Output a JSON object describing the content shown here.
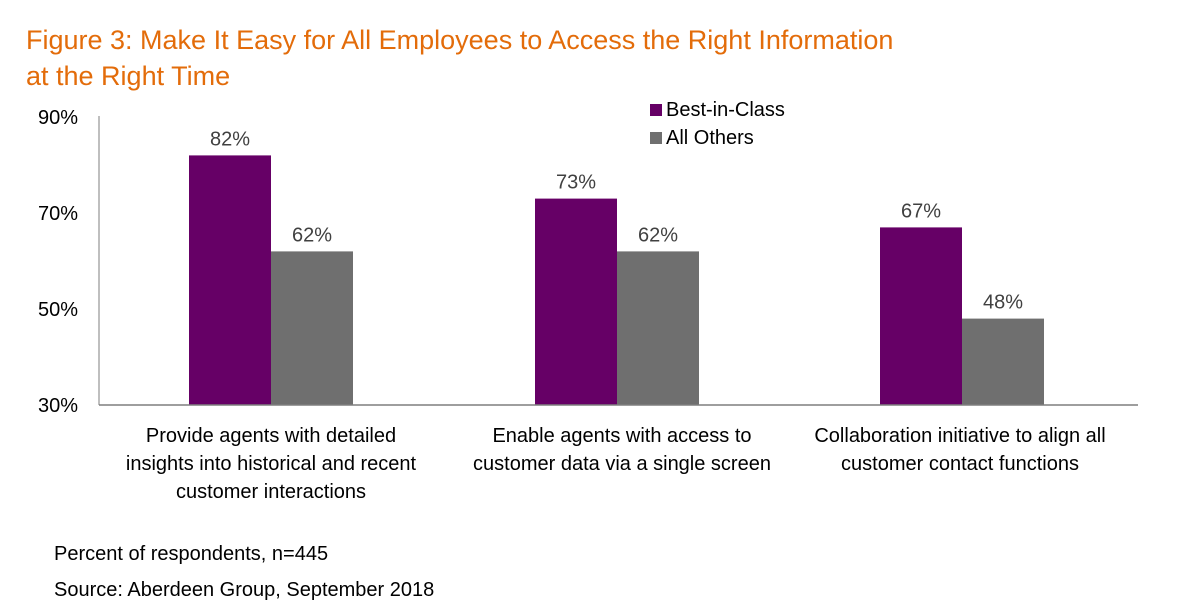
{
  "chart_data": {
    "type": "bar",
    "title": "Figure 3: Make It Easy for All Employees to Access the Right Information at the Right Time",
    "title_lines": [
      "Figure 3: Make It Easy for All Employees to Access the Right Information",
      "at the Right Time"
    ],
    "categories": [
      "Provide agents with detailed insights into historical and recent customer interactions",
      "Enable agents with access to customer data via a single screen",
      "Collaboration initiative to align all customer contact functions"
    ],
    "series": [
      {
        "name": "Best-in-Class",
        "values": [
          82,
          73,
          67
        ],
        "labels": [
          "82%",
          "73%",
          "67%"
        ],
        "color": "#660066"
      },
      {
        "name": "All Others",
        "values": [
          62,
          62,
          48
        ],
        "labels": [
          "62%",
          "62%",
          "48%"
        ],
        "color": "#6F6F6F"
      }
    ],
    "ylim": [
      30,
      90
    ],
    "yticks": [
      30,
      50,
      70,
      90
    ],
    "ytick_labels": [
      "30%",
      "50%",
      "70%",
      "90%"
    ],
    "xlabel": "",
    "ylabel": "",
    "grid": false,
    "legend_position": "top-center",
    "footnotes": [
      "Percent of respondents, n=445",
      "Source: Aberdeen Group, September 2018"
    ],
    "title_color": "#E36C0A"
  }
}
